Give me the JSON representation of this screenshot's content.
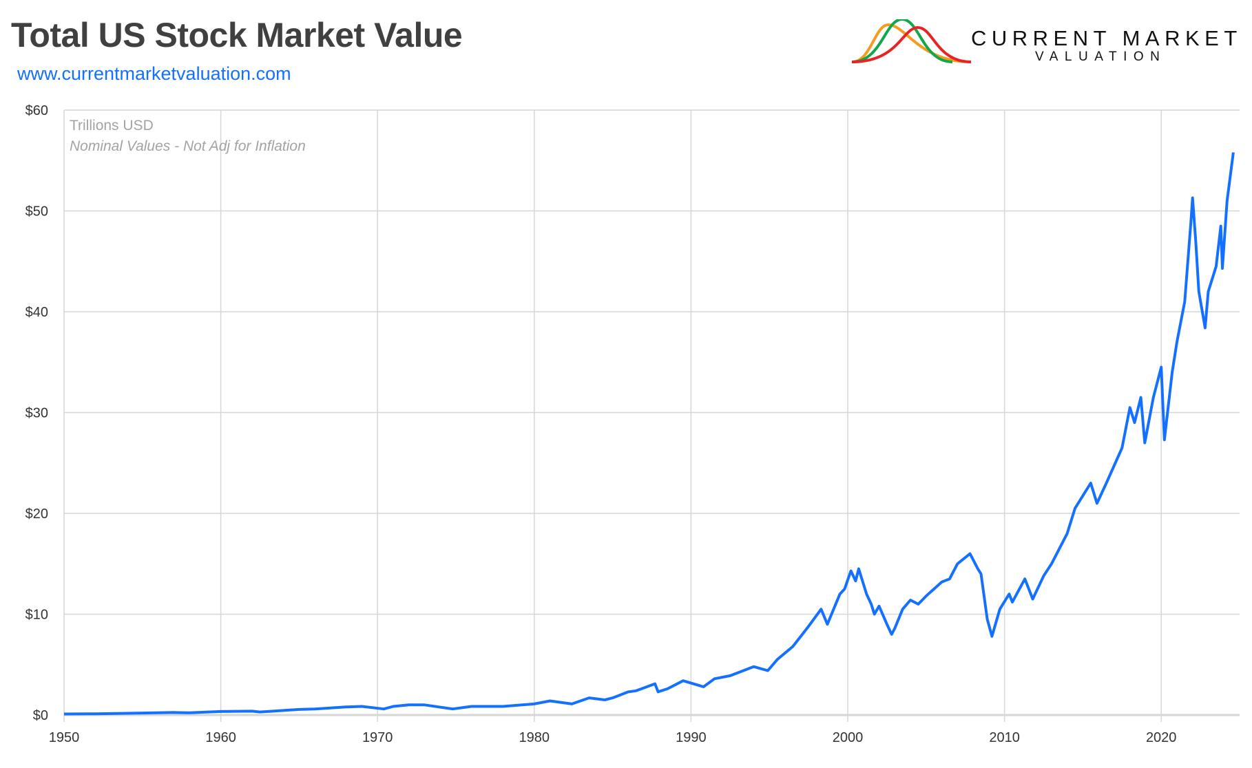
{
  "header": {
    "title": "Total US Stock Market Value",
    "url": "www.currentmarketvaluation.com"
  },
  "logo": {
    "line1": "CURRENT MARKET",
    "line2": "VALUATION",
    "colors": [
      "#f39c1f",
      "#10a84a",
      "#e82323"
    ]
  },
  "chart_data": {
    "type": "line",
    "title": "Total US Stock Market Value",
    "annotations": [
      "Trillions USD",
      "Nominal Values - Not Adj for Inflation"
    ],
    "xlabel": "",
    "ylabel": "",
    "xlim": [
      1950,
      2025
    ],
    "ylim": [
      0,
      60
    ],
    "x_ticks": [
      "1950",
      "1960",
      "1970",
      "1980",
      "1990",
      "2000",
      "2010",
      "2020"
    ],
    "y_ticks": [
      "$0",
      "$10",
      "$20",
      "$30",
      "$40",
      "$50",
      "$60"
    ],
    "grid": true,
    "line_color": "#1470ff",
    "series": [
      {
        "x": [
          1950,
          1952,
          1955,
          1957,
          1958,
          1960,
          1962,
          1962.5,
          1965,
          1966,
          1968,
          1969,
          1970.4,
          1971,
          1972,
          1973,
          1974.8,
          1975.5,
          1976,
          1978,
          1980,
          1981,
          1982.4,
          1983.5,
          1984.5,
          1985,
          1986,
          1986.5,
          1987.7,
          1987.9,
          1988.5,
          1989.5,
          1990.8,
          1991.5,
          1992.5,
          1993,
          1994,
          1994.9,
          1995.5,
          1996.5,
          1997.5,
          1998.3,
          1998.7,
          1999.5,
          1999.8,
          2000.2,
          2000.5,
          2000.7,
          2001.2,
          2001.5,
          2001.7,
          2002,
          2002.5,
          2002.8,
          2003,
          2003.5,
          2004,
          2004.5,
          2005,
          2006,
          2006.5,
          2007,
          2007.8,
          2008.3,
          2008.5,
          2008.9,
          2009.2,
          2009.7,
          2010.3,
          2010.5,
          2011.3,
          2011.8,
          2012.5,
          2013,
          2014,
          2014.5,
          2015.5,
          2015.9,
          2016.5,
          2017.5,
          2018,
          2018.3,
          2018.7,
          2018.95,
          2019.5,
          2020,
          2020.2,
          2020.7,
          2021,
          2021.5,
          2021.9,
          2022,
          2022.2,
          2022.4,
          2022.8,
          2023,
          2023.5,
          2023.8,
          2023.9,
          2024.2,
          2024.6
        ],
        "values": [
          0.1,
          0.12,
          0.2,
          0.25,
          0.22,
          0.35,
          0.38,
          0.3,
          0.55,
          0.6,
          0.8,
          0.85,
          0.6,
          0.85,
          1.0,
          1.0,
          0.6,
          0.75,
          0.85,
          0.85,
          1.1,
          1.4,
          1.1,
          1.7,
          1.5,
          1.7,
          2.3,
          2.4,
          3.1,
          2.3,
          2.6,
          3.4,
          2.8,
          3.6,
          3.9,
          4.2,
          4.8,
          4.4,
          5.5,
          6.8,
          8.8,
          10.5,
          9.0,
          12.0,
          12.5,
          14.3,
          13.3,
          14.5,
          12.0,
          11.0,
          10.0,
          10.8,
          9.0,
          8.0,
          8.6,
          10.5,
          11.4,
          11.0,
          11.8,
          13.2,
          13.5,
          15.0,
          16.0,
          14.5,
          14.0,
          9.5,
          7.8,
          10.5,
          12.0,
          11.2,
          13.5,
          11.5,
          13.8,
          15.0,
          18.0,
          20.5,
          23.0,
          21.0,
          23.0,
          26.5,
          30.5,
          29.0,
          31.5,
          27.0,
          31.5,
          34.5,
          27.3,
          34.0,
          37.0,
          41.0,
          49.0,
          51.3,
          47.0,
          42.0,
          38.4,
          42.0,
          44.5,
          48.5,
          44.3,
          51.0,
          55.8
        ]
      }
    ]
  }
}
